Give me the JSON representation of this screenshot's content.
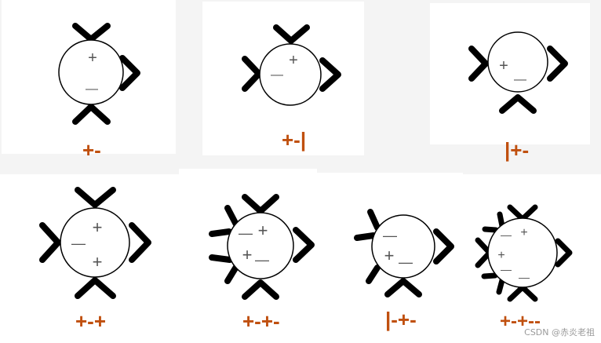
{
  "colors": {
    "caption": "#c0500f",
    "stroke": "#000000",
    "sign": "#555555",
    "panel": "#ffffff",
    "background": "#f4f4f4"
  },
  "figures": [
    {
      "caption": "+-",
      "signs": [
        "+",
        "—"
      ]
    },
    {
      "caption": "+-|",
      "signs": [
        "+",
        "—"
      ]
    },
    {
      "caption": "|+-",
      "signs": [
        "+",
        "—"
      ]
    },
    {
      "caption": "+-+",
      "signs": [
        "+",
        "—",
        "+"
      ]
    },
    {
      "caption": "+-+-",
      "signs": [
        "—",
        "+",
        "+",
        "—"
      ]
    },
    {
      "caption": "|-+-",
      "signs": [
        "—",
        "+",
        "—"
      ]
    },
    {
      "caption": "+-+--",
      "signs": [
        "—",
        "+",
        "+",
        "—",
        "—"
      ]
    }
  ],
  "watermark": "CSDN @赤炎老祖"
}
